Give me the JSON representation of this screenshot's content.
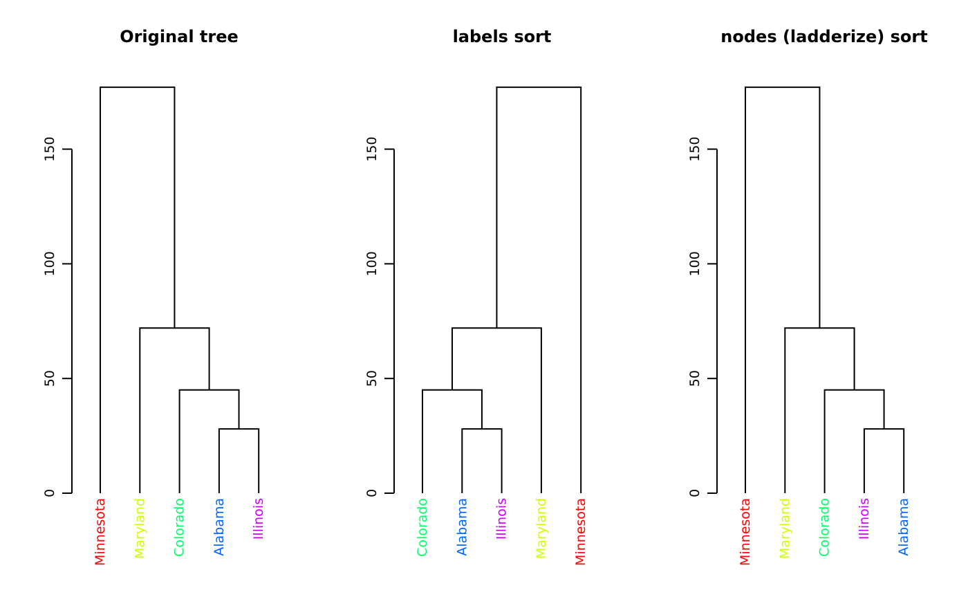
{
  "chart_data": [
    {
      "type": "dendrogram",
      "title": "Original tree",
      "leaves": [
        {
          "label": "Minnesota",
          "color": "#FF0000"
        },
        {
          "label": "Maryland",
          "color": "#CCFF00"
        },
        {
          "label": "Colorado",
          "color": "#00FF66"
        },
        {
          "label": "Alabama",
          "color": "#0066FF"
        },
        {
          "label": "Illinois",
          "color": "#CC00FF"
        }
      ],
      "merges": [
        {
          "left": "Alabama",
          "right": "Illinois",
          "height": 28
        },
        {
          "left": "Colorado",
          "right": "Alabama+Illinois",
          "height": 45
        },
        {
          "left": "Maryland",
          "right": "Colorado+Alabama+Illinois",
          "height": 72
        },
        {
          "left": "Minnesota",
          "right": "Maryland+Colorado+Alabama+Illinois",
          "height": 177
        }
      ],
      "y_ticks": [
        0,
        50,
        100,
        150
      ],
      "ylim": [
        0,
        177
      ]
    },
    {
      "type": "dendrogram",
      "title": "labels sort",
      "leaves": [
        {
          "label": "Colorado",
          "color": "#00FF66"
        },
        {
          "label": "Alabama",
          "color": "#0066FF"
        },
        {
          "label": "Illinois",
          "color": "#CC00FF"
        },
        {
          "label": "Maryland",
          "color": "#CCFF00"
        },
        {
          "label": "Minnesota",
          "color": "#FF0000"
        }
      ],
      "merges": [
        {
          "left": "Alabama",
          "right": "Illinois",
          "height": 28
        },
        {
          "left": "Colorado",
          "right": "Alabama+Illinois",
          "height": 45
        },
        {
          "left": "Colorado+Alabama+Illinois",
          "right": "Maryland",
          "height": 72
        },
        {
          "left": "Colorado+Alabama+Illinois+Maryland",
          "right": "Minnesota",
          "height": 177
        }
      ],
      "y_ticks": [
        0,
        50,
        100,
        150
      ],
      "ylim": [
        0,
        177
      ]
    },
    {
      "type": "dendrogram",
      "title": "nodes (ladderize) sort",
      "leaves": [
        {
          "label": "Minnesota",
          "color": "#FF0000"
        },
        {
          "label": "Maryland",
          "color": "#CCFF00"
        },
        {
          "label": "Colorado",
          "color": "#00FF66"
        },
        {
          "label": "Illinois",
          "color": "#CC00FF"
        },
        {
          "label": "Alabama",
          "color": "#0066FF"
        }
      ],
      "merges": [
        {
          "left": "Illinois",
          "right": "Alabama",
          "height": 28
        },
        {
          "left": "Colorado",
          "right": "Illinois+Alabama",
          "height": 45
        },
        {
          "left": "Maryland",
          "right": "Colorado+Illinois+Alabama",
          "height": 72
        },
        {
          "left": "Minnesota",
          "right": "Maryland+Colorado+Illinois+Alabama",
          "height": 177
        }
      ],
      "y_ticks": [
        0,
        50,
        100,
        150
      ],
      "ylim": [
        0,
        177
      ]
    }
  ]
}
